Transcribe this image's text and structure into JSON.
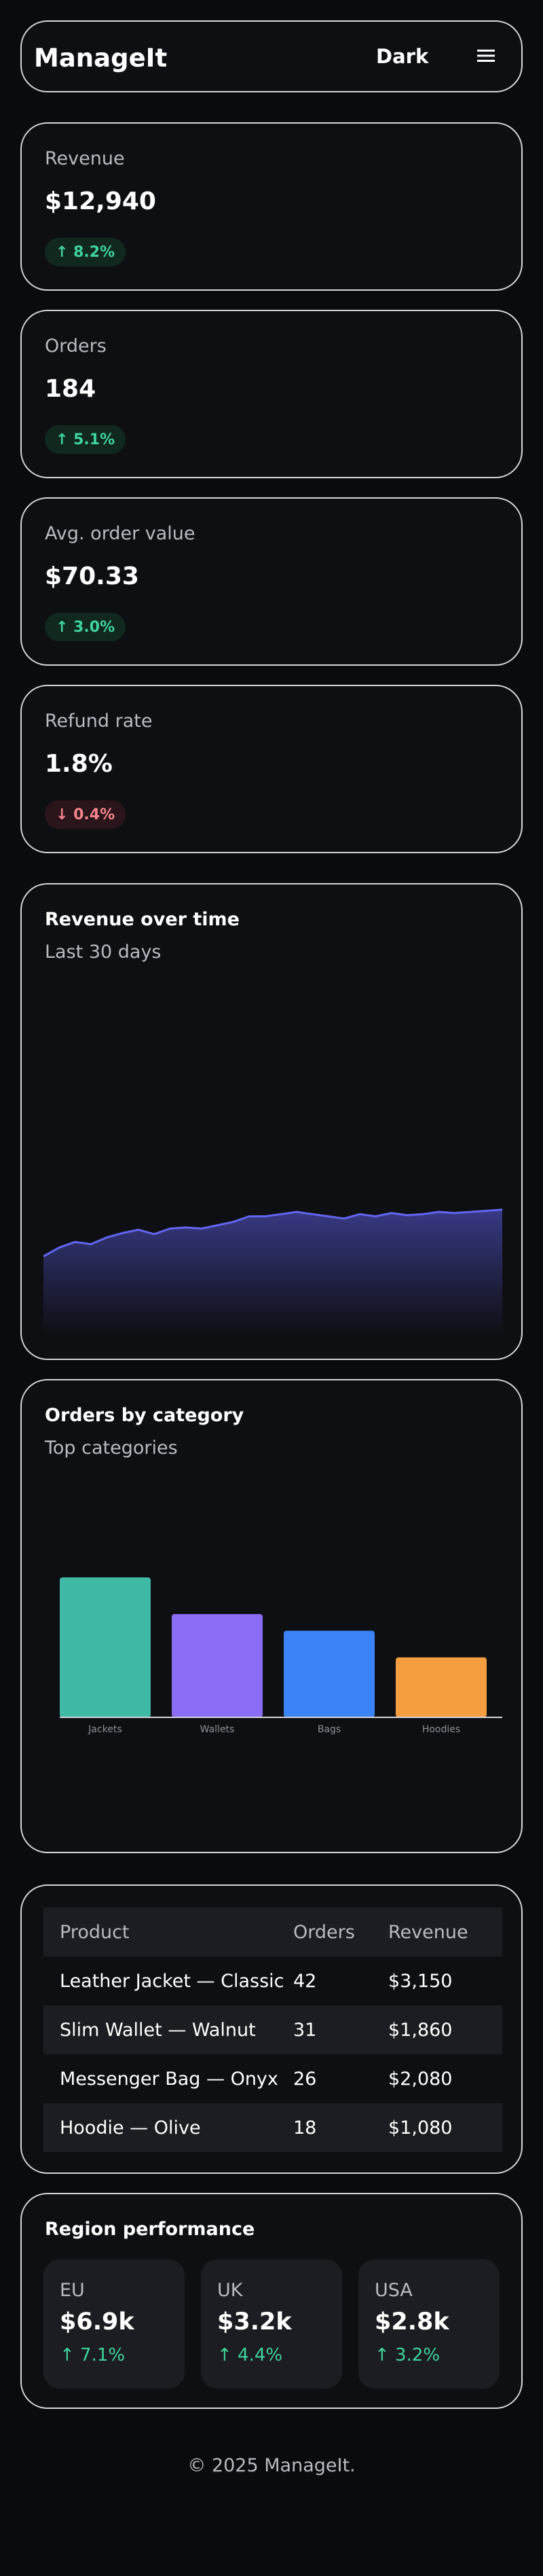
{
  "header": {
    "brand": "ManageIt",
    "theme_toggle_label": "Dark",
    "menu_icon": "hamburger-icon"
  },
  "kpis": [
    {
      "label": "Revenue",
      "value": "$12,940",
      "delta": "↑ 8.2%",
      "direction": "up"
    },
    {
      "label": "Orders",
      "value": "184",
      "delta": "↑ 5.1%",
      "direction": "up"
    },
    {
      "label": "Avg. order value",
      "value": "$70.33",
      "delta": "↑ 3.0%",
      "direction": "up"
    },
    {
      "label": "Refund rate",
      "value": "1.8%",
      "delta": "↓ 0.4%",
      "direction": "down"
    }
  ],
  "revenue_chart": {
    "title": "Revenue over time",
    "subtitle": "Last 30 days"
  },
  "category_chart": {
    "title": "Orders by category",
    "subtitle": "Top categories"
  },
  "chart_data": [
    {
      "type": "area",
      "title": "Revenue over time",
      "subtitle": "Last 30 days",
      "x": [
        1,
        2,
        3,
        4,
        5,
        6,
        7,
        8,
        9,
        10,
        11,
        12,
        13,
        14,
        15,
        16,
        17,
        18,
        19,
        20,
        21,
        22,
        23,
        24,
        25,
        26,
        27,
        28,
        29,
        30
      ],
      "values": [
        70,
        78,
        83,
        81,
        87,
        91,
        94,
        90,
        95,
        96,
        95,
        98,
        101,
        106,
        106,
        108,
        110,
        108,
        106,
        104,
        108,
        106,
        109,
        107,
        108,
        110,
        109,
        110,
        111,
        112
      ],
      "ylim": [
        0,
        220
      ],
      "grid": false,
      "color": "#6366f1"
    },
    {
      "type": "bar",
      "title": "Orders by category",
      "subtitle": "Top categories",
      "categories": [
        "Jackets",
        "Wallets",
        "Bags",
        "Hoodies"
      ],
      "values": [
        42,
        31,
        26,
        18
      ],
      "colors": [
        "#3fb8a5",
        "#8b6cf5",
        "#3b82f6",
        "#f59e3f"
      ],
      "ylim": [
        0,
        42
      ]
    }
  ],
  "products_table": {
    "headers": [
      "Product",
      "Orders",
      "Revenue"
    ],
    "rows": [
      [
        "Leather Jacket — Classic",
        "42",
        "$3,150"
      ],
      [
        "Slim Wallet — Walnut",
        "31",
        "$1,860"
      ],
      [
        "Messenger Bag — Onyx",
        "26",
        "$2,080"
      ],
      [
        "Hoodie — Olive",
        "18",
        "$1,080"
      ]
    ]
  },
  "region": {
    "title": "Region performance",
    "items": [
      {
        "name": "EU",
        "value": "$6.9k",
        "delta": "↑ 7.1%"
      },
      {
        "name": "UK",
        "value": "$3.2k",
        "delta": "↑ 4.4%"
      },
      {
        "name": "USA",
        "value": "$2.8k",
        "delta": "↑ 3.2%"
      }
    ]
  },
  "footer": {
    "text": "© 2025 ManageIt."
  }
}
